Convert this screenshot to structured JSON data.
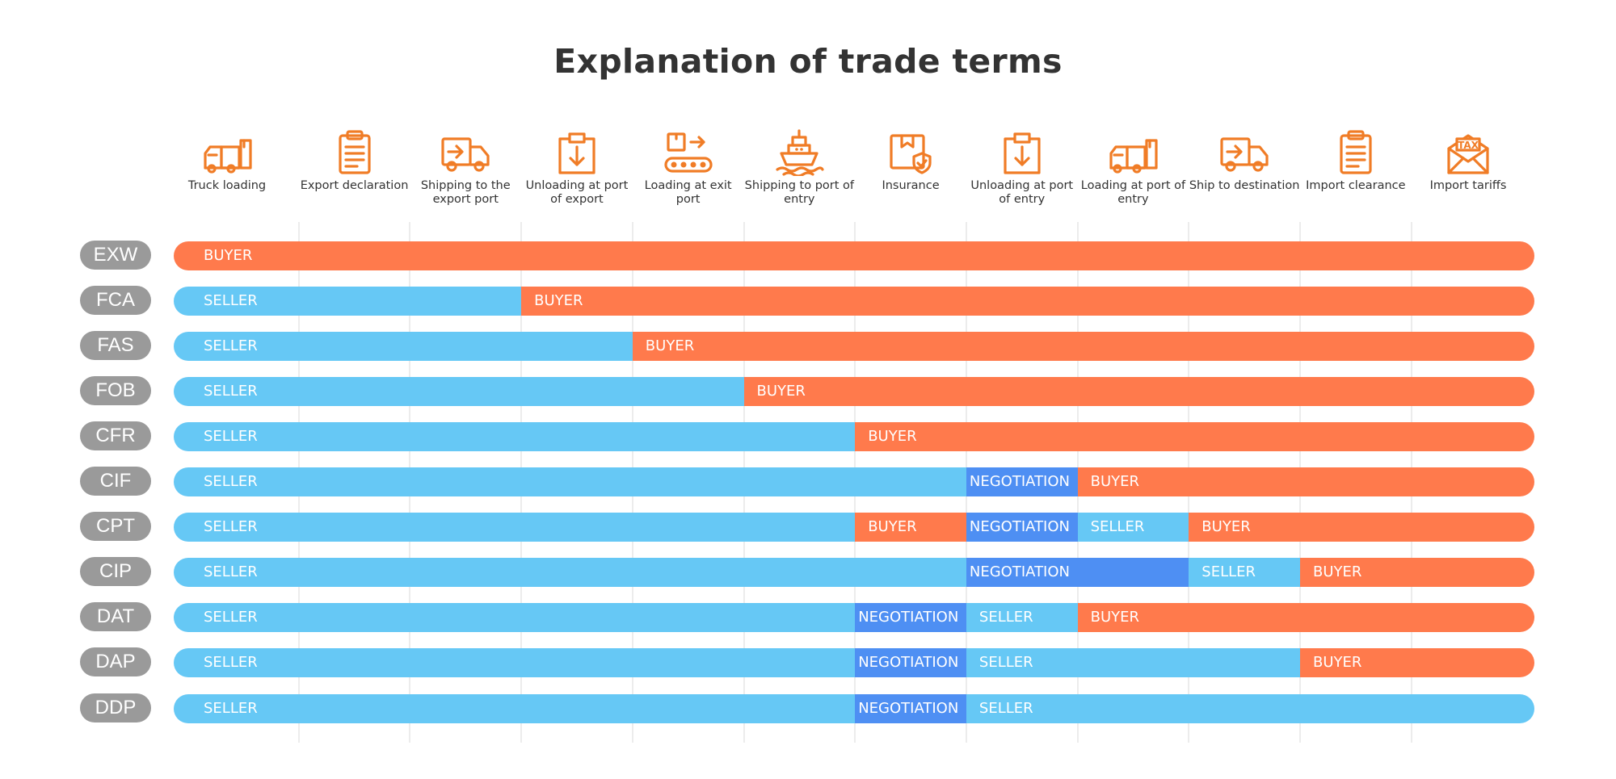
{
  "title": "Explanation of trade terms",
  "colors": {
    "seller": "#66c8f5",
    "buyer": "#ff7a4c",
    "negotiation": "#4e8ff3",
    "term_badge": "#9a9a9a",
    "icon": "#f07c26"
  },
  "stages": [
    {
      "label": "Truck loading",
      "icon": "truck-loading-icon"
    },
    {
      "label": "Export declaration",
      "icon": "clipboard-icon"
    },
    {
      "label": "Shipping to the export port",
      "icon": "delivery-truck-icon"
    },
    {
      "label": "Unloading at port of export",
      "icon": "box-unload-icon"
    },
    {
      "label": "Loading at exit port",
      "icon": "conveyor-icon"
    },
    {
      "label": "Shipping to port of entry",
      "icon": "ship-icon"
    },
    {
      "label": "Insurance",
      "icon": "insured-box-icon"
    },
    {
      "label": "Unloading at port of entry",
      "icon": "box-unload-icon"
    },
    {
      "label": "Loading at port of entry",
      "icon": "truck-loading-icon"
    },
    {
      "label": "Ship to destination",
      "icon": "delivery-truck-icon"
    },
    {
      "label": "Import clearance",
      "icon": "clipboard-icon"
    },
    {
      "label": "Import tariffs",
      "icon": "tax-envelope-icon",
      "icon_text": "TAX"
    }
  ],
  "terms": [
    {
      "code": "EXW",
      "segments": [
        {
          "party": "BUYER",
          "from": 0,
          "to": 12
        }
      ]
    },
    {
      "code": "FCA",
      "segments": [
        {
          "party": "SELLER",
          "from": 0,
          "to": 3
        },
        {
          "party": "BUYER",
          "from": 3,
          "to": 12
        }
      ]
    },
    {
      "code": "FAS",
      "segments": [
        {
          "party": "SELLER",
          "from": 0,
          "to": 4
        },
        {
          "party": "BUYER",
          "from": 4,
          "to": 12
        }
      ]
    },
    {
      "code": "FOB",
      "segments": [
        {
          "party": "SELLER",
          "from": 0,
          "to": 5
        },
        {
          "party": "BUYER",
          "from": 5,
          "to": 12
        }
      ]
    },
    {
      "code": "CFR",
      "segments": [
        {
          "party": "SELLER",
          "from": 0,
          "to": 6
        },
        {
          "party": "BUYER",
          "from": 6,
          "to": 12
        }
      ]
    },
    {
      "code": "CIF",
      "segments": [
        {
          "party": "SELLER",
          "from": 0,
          "to": 7
        },
        {
          "party": "NEGOTIATION",
          "from": 7,
          "to": 8
        },
        {
          "party": "BUYER",
          "from": 8,
          "to": 12
        }
      ]
    },
    {
      "code": "CPT",
      "segments": [
        {
          "party": "SELLER",
          "from": 0,
          "to": 6
        },
        {
          "party": "BUYER",
          "from": 6,
          "to": 7
        },
        {
          "party": "NEGOTIATION",
          "from": 7,
          "to": 8
        },
        {
          "party": "SELLER",
          "from": 8,
          "to": 9
        },
        {
          "party": "BUYER",
          "from": 9,
          "to": 12
        }
      ]
    },
    {
      "code": "CIP",
      "segments": [
        {
          "party": "SELLER",
          "from": 0,
          "to": 7
        },
        {
          "party": "NEGOTIATION",
          "from": 7,
          "to": 9
        },
        {
          "party": "SELLER",
          "from": 9,
          "to": 10
        },
        {
          "party": "BUYER",
          "from": 10,
          "to": 12
        }
      ]
    },
    {
      "code": "DAT",
      "segments": [
        {
          "party": "SELLER",
          "from": 0,
          "to": 6
        },
        {
          "party": "NEGOTIATION",
          "from": 6,
          "to": 7
        },
        {
          "party": "SELLER",
          "from": 7,
          "to": 8
        },
        {
          "party": "BUYER",
          "from": 8,
          "to": 12
        }
      ]
    },
    {
      "code": "DAP",
      "segments": [
        {
          "party": "SELLER",
          "from": 0,
          "to": 6
        },
        {
          "party": "NEGOTIATION",
          "from": 6,
          "to": 7
        },
        {
          "party": "SELLER",
          "from": 7,
          "to": 10
        },
        {
          "party": "BUYER",
          "from": 10,
          "to": 12
        }
      ]
    },
    {
      "code": "DDP",
      "segments": [
        {
          "party": "SELLER",
          "from": 0,
          "to": 6
        },
        {
          "party": "NEGOTIATION",
          "from": 6,
          "to": 7
        },
        {
          "party": "SELLER",
          "from": 7,
          "to": 12
        }
      ]
    }
  ]
}
